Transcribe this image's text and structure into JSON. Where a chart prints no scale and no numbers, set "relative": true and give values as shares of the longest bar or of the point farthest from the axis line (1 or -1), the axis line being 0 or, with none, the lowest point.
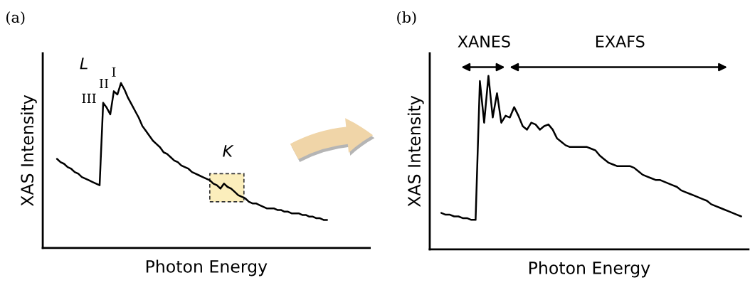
{
  "chart_data": [
    {
      "type": "line",
      "title": "(a)",
      "xlabel": "Photon Energy",
      "ylabel": "XAS Intensity",
      "relative": true,
      "annotations": [
        "L",
        "III",
        "II",
        "I",
        "K"
      ],
      "categories": [
        null,
        null,
        null,
        null,
        null,
        null,
        null,
        null,
        null,
        null,
        null,
        null,
        null,
        null,
        null,
        null,
        null,
        null,
        null,
        null,
        null,
        null,
        null,
        null,
        null,
        null,
        null,
        null,
        null,
        null,
        null,
        null,
        null,
        null,
        null,
        null,
        null,
        null,
        null,
        null,
        null,
        null,
        null,
        null,
        null,
        null,
        null,
        null,
        null,
        null,
        null,
        null,
        null,
        null,
        null,
        null,
        null,
        null,
        null,
        null,
        null,
        null,
        null,
        null,
        null,
        null,
        null,
        null,
        null,
        null,
        null,
        null,
        null,
        null,
        null,
        null,
        null
      ],
      "series": [
        {
          "color": "#000000",
          "values": [
            0.54,
            0.52,
            0.51,
            0.49,
            0.48,
            0.46,
            0.45,
            0.43,
            0.42,
            0.41,
            0.4,
            0.39,
            0.38,
            0.88,
            0.85,
            0.81,
            0.95,
            0.93,
            1,
            0.96,
            0.91,
            0.87,
            0.83,
            0.79,
            0.74,
            0.71,
            0.68,
            0.65,
            0.63,
            0.61,
            0.58,
            0.57,
            0.55,
            0.53,
            0.52,
            0.5,
            0.49,
            0.48,
            0.46,
            0.45,
            0.44,
            0.43,
            0.42,
            0.41,
            0.39,
            0.38,
            0.36,
            0.39,
            0.37,
            0.36,
            0.34,
            0.32,
            0.31,
            0.3,
            0.28,
            0.27,
            0.27,
            0.26,
            0.25,
            0.24,
            0.24,
            0.24,
            0.23,
            0.23,
            0.22,
            0.22,
            0.21,
            0.21,
            0.21,
            0.2,
            0.2,
            0.19,
            0.19,
            0.18,
            0.18,
            0.17,
            0.17
          ]
        }
      ]
    },
    {
      "type": "line",
      "title": "(b)",
      "xlabel": "Photon Energy",
      "ylabel": "XAS Intensity",
      "relative": true,
      "annotations": [
        "XANES",
        "EXAFS"
      ],
      "categories": [
        null,
        null,
        null,
        null,
        null,
        null,
        null,
        null,
        null,
        null,
        null,
        null,
        null,
        null,
        null,
        null,
        null,
        null,
        null,
        null,
        null,
        null,
        null,
        null,
        null,
        null,
        null,
        null,
        null,
        null,
        null,
        null,
        null,
        null,
        null,
        null,
        null,
        null,
        null,
        null,
        null,
        null,
        null,
        null,
        null,
        null,
        null,
        null,
        null,
        null,
        null,
        null,
        null,
        null,
        null,
        null,
        null,
        null,
        null,
        null,
        null,
        null,
        null,
        null,
        null,
        null,
        null,
        null,
        null,
        null,
        null
      ],
      "series": [
        {
          "color": "#000000",
          "values": [
            0.21,
            0.2,
            0.2,
            0.19,
            0.19,
            0.18,
            0.18,
            0.17,
            0.17,
            0.97,
            0.73,
            1,
            0.76,
            0.9,
            0.73,
            0.77,
            0.76,
            0.82,
            0.77,
            0.71,
            0.69,
            0.73,
            0.72,
            0.69,
            0.71,
            0.72,
            0.69,
            0.64,
            0.62,
            0.6,
            0.59,
            0.59,
            0.59,
            0.59,
            0.59,
            0.58,
            0.57,
            0.54,
            0.52,
            0.5,
            0.49,
            0.48,
            0.48,
            0.48,
            0.48,
            0.47,
            0.45,
            0.43,
            0.42,
            0.41,
            0.4,
            0.4,
            0.39,
            0.38,
            0.37,
            0.36,
            0.34,
            0.33,
            0.32,
            0.31,
            0.3,
            0.29,
            0.28,
            0.26,
            0.25,
            0.24,
            0.23,
            0.22,
            0.21,
            0.2,
            0.19
          ]
        }
      ]
    }
  ]
}
